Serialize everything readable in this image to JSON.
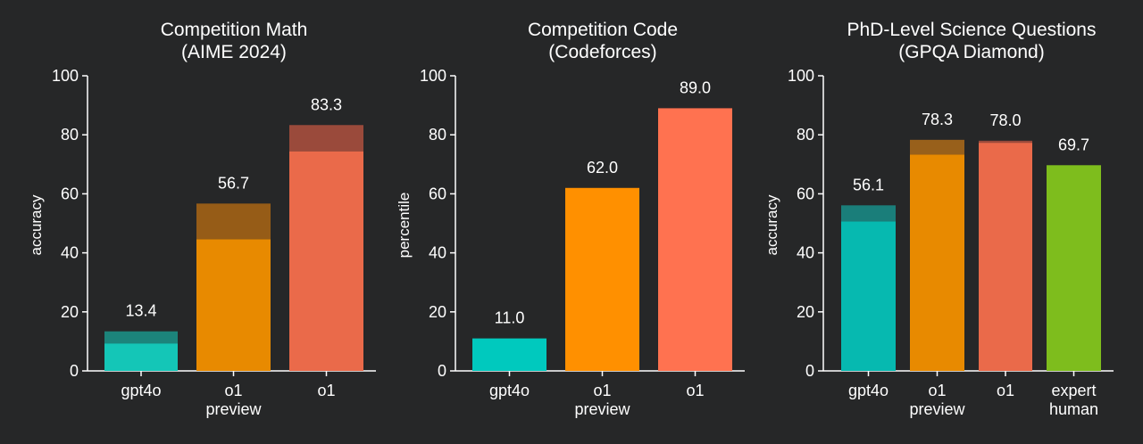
{
  "chart_data": [
    {
      "type": "bar",
      "title": [
        "Competition Math",
        "(AIME 2024)"
      ],
      "ylabel": "accuracy",
      "ylim": [
        0,
        100
      ],
      "yticks": [
        0,
        20,
        40,
        60,
        80,
        100
      ],
      "categories": [
        [
          "gpt4o"
        ],
        [
          "o1",
          "preview"
        ],
        [
          "o1"
        ]
      ],
      "values": [
        13.4,
        56.7,
        83.3
      ],
      "lower_values": [
        9.3,
        44.6,
        74.4
      ],
      "value_labels": [
        "13.4",
        "56.7",
        "83.3"
      ],
      "colors": [
        "#14c6b7",
        "#e88a00",
        "#ea6a4a"
      ],
      "top_colors": [
        "#1c847b",
        "#965c17",
        "#9a4a3b"
      ],
      "grid": false
    },
    {
      "type": "bar",
      "title": [
        "Competition Code",
        "(Codeforces)"
      ],
      "ylabel": "percentile",
      "ylim": [
        0,
        100
      ],
      "yticks": [
        0,
        20,
        40,
        60,
        80,
        100
      ],
      "categories": [
        [
          "gpt4o"
        ],
        [
          "o1",
          "preview"
        ],
        [
          "o1"
        ]
      ],
      "values": [
        11.0,
        62.0,
        89.0
      ],
      "value_labels": [
        "11.0",
        "62.0",
        "89.0"
      ],
      "colors": [
        "#00c9be",
        "#ff9000",
        "#ff7250"
      ],
      "grid": false
    },
    {
      "type": "bar",
      "title": [
        "PhD-Level Science Questions",
        "(GPQA Diamond)"
      ],
      "ylabel": "accuracy",
      "ylim": [
        0,
        100
      ],
      "yticks": [
        0,
        20,
        40,
        60,
        80,
        100
      ],
      "categories": [
        [
          "gpt4o"
        ],
        [
          "o1",
          "preview"
        ],
        [
          "o1"
        ],
        [
          "expert",
          "human"
        ]
      ],
      "values": [
        56.1,
        78.3,
        78.0,
        69.7
      ],
      "lower_values": [
        50.6,
        73.3,
        77.3,
        null
      ],
      "value_labels": [
        "56.1",
        "78.3",
        "78.0",
        "69.7"
      ],
      "colors": [
        "#06b9b0",
        "#e88a00",
        "#ea6a4a",
        "#7ebd1d"
      ],
      "top_colors": [
        "#1a7e7a",
        "#98601b",
        "#9a4a3b",
        null
      ],
      "grid": false
    }
  ],
  "colors": {
    "background": "#262728",
    "text": "#ffffff"
  }
}
